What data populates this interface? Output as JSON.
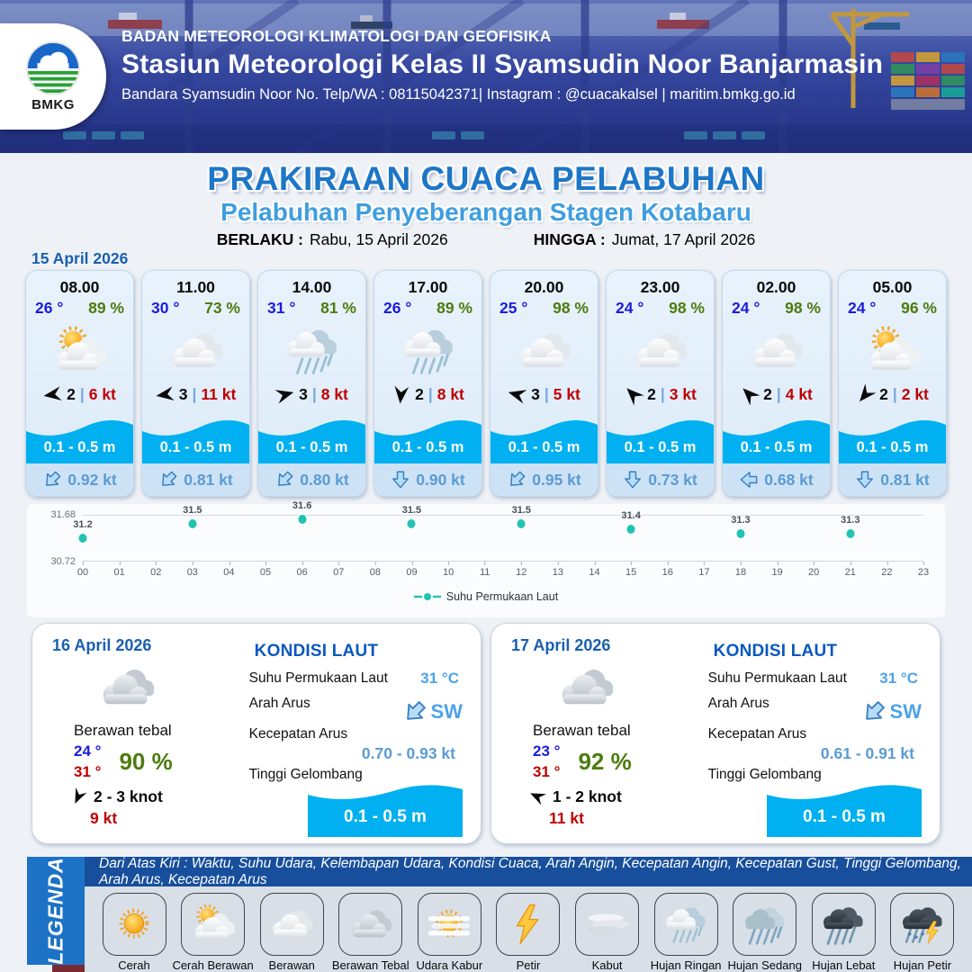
{
  "colors": {
    "title-blue": "#1d76c6",
    "subtitle-blue": "#3f9ede",
    "date-blue": "#1a5fae",
    "temp-blue": "#1c1cdb",
    "humidity-green": "#4d7c0f",
    "gust-red": "#c00000",
    "sep-blue": "#79a8e0",
    "wave-cyan": "#00b0f0",
    "current-blue": "#5b9bd5",
    "chart-teal": "#22c3b2",
    "legend-bar-blue": "#1c72c4",
    "legend-strip-blue": "#174f9c"
  },
  "header": {
    "org": "BADAN METEOROLOGI KLIMATOLOGI DAN GEOFISIKA",
    "station": "Stasiun Meteorologi Kelas II Syamsudin Noor Banjarmasin",
    "contact": "Bandara Syamsudin Noor No. Telp/WA : 08115042371| Instagram : @cuacakalsel | maritim.bmkg.go.id",
    "logo_text": "BMKG"
  },
  "title": {
    "main": "PRAKIRAAN CUACA PELABUHAN",
    "subtitle": "Pelabuhan Penyeberangan Stagen Kotabaru",
    "valid_from_label": "BERLAKU :",
    "valid_from": "Rabu, 15 April 2026",
    "valid_to_label": "HINGGA :",
    "valid_to": "Jumat, 17 April 2026"
  },
  "forecast_date": "15 April 2026",
  "strings": {
    "wind_sep": "|"
  },
  "hourly": [
    {
      "time": "08.00",
      "temp": "26 °",
      "humidity": "89 %",
      "icon": "cerah-berawan",
      "wind_speed": "2",
      "gust": "6 kt",
      "wind_deg": 172,
      "wave": "0.1 - 0.5 m",
      "current": "0.92 kt",
      "current_deg": 45
    },
    {
      "time": "11.00",
      "temp": "30 °",
      "humidity": "73 %",
      "icon": "berawan",
      "wind_speed": "3",
      "gust": "11 kt",
      "wind_deg": 172,
      "wave": "0.1 - 0.5 m",
      "current": "0.81 kt",
      "current_deg": 45
    },
    {
      "time": "14.00",
      "temp": "31 °",
      "humidity": "81 %",
      "icon": "hujan-ringan",
      "wind_speed": "3",
      "gust": "8 kt",
      "wind_deg": 345,
      "wave": "0.1 - 0.5 m",
      "current": "0.80 kt",
      "current_deg": 45
    },
    {
      "time": "17.00",
      "temp": "26 °",
      "humidity": "89 %",
      "icon": "hujan-ringan",
      "wind_speed": "2",
      "gust": "8 kt",
      "wind_deg": 95,
      "wave": "0.1 - 0.5 m",
      "current": "0.90 kt",
      "current_deg": 0
    },
    {
      "time": "20.00",
      "temp": "25 °",
      "humidity": "98 %",
      "icon": "berawan",
      "wind_speed": "3",
      "gust": "5 kt",
      "wind_deg": 195,
      "wave": "0.1 - 0.5 m",
      "current": "0.95 kt",
      "current_deg": 45
    },
    {
      "time": "23.00",
      "temp": "24 °",
      "humidity": "98 %",
      "icon": "berawan",
      "wind_speed": "2",
      "gust": "3 kt",
      "wind_deg": 225,
      "wave": "0.1 - 0.5 m",
      "current": "0.73 kt",
      "current_deg": 0
    },
    {
      "time": "02.00",
      "temp": "24 °",
      "humidity": "98 %",
      "icon": "berawan",
      "wind_speed": "2",
      "gust": "4 kt",
      "wind_deg": 225,
      "wave": "0.1 - 0.5 m",
      "current": "0.68 kt",
      "current_deg": 90
    },
    {
      "time": "05.00",
      "temp": "24 °",
      "humidity": "96 %",
      "icon": "cerah-berawan",
      "wind_speed": "2",
      "gust": "2 kt",
      "wind_deg": 130,
      "wave": "0.1 - 0.5 m",
      "current": "0.81 kt",
      "current_deg": 0
    }
  ],
  "chart_data": {
    "type": "scatter",
    "legend": "Suhu Permukaan Laut",
    "ylim": [
      30.72,
      31.68
    ],
    "y_top_label": "31.68",
    "y_bottom_label": "30.72",
    "x_ticks": [
      "00",
      "01",
      "02",
      "03",
      "04",
      "05",
      "06",
      "07",
      "08",
      "09",
      "10",
      "11",
      "12",
      "13",
      "14",
      "15",
      "16",
      "17",
      "18",
      "19",
      "20",
      "21",
      "22",
      "23"
    ],
    "points": [
      {
        "h": 0,
        "v": 31.2,
        "label": "31.2"
      },
      {
        "h": 3,
        "v": 31.5,
        "label": "31.5"
      },
      {
        "h": 6,
        "v": 31.6,
        "label": "31.6"
      },
      {
        "h": 9,
        "v": 31.5,
        "label": "31.5"
      },
      {
        "h": 12,
        "v": 31.5,
        "label": "31.5"
      },
      {
        "h": 15,
        "v": 31.4,
        "label": "31.4"
      },
      {
        "h": 18,
        "v": 31.3,
        "label": "31.3"
      },
      {
        "h": 21,
        "v": 31.3,
        "label": "31.3"
      }
    ]
  },
  "sea_labels": {
    "title": "KONDISI LAUT",
    "sst": "Suhu Permukaan Laut",
    "dir": "Arah Arus",
    "speed": "Kecepatan Arus",
    "wave": "Tinggi Gelombang"
  },
  "days": [
    {
      "date": "16 April 2026",
      "icon": "berawan-tebal",
      "condition": "Berawan tebal",
      "temp_min": "24 °",
      "temp_max": "31 °",
      "humidity": "90 %",
      "wind_range": "2  - 3 knot",
      "wind_deg": 115,
      "gust": "9 kt",
      "sea": {
        "sst": "31 °C",
        "dir": "SW",
        "dir_deg": 45,
        "speed": "0.70 - 0.93 kt",
        "wave": "0.1 - 0.5 m"
      }
    },
    {
      "date": "17 April 2026",
      "icon": "berawan-tebal",
      "condition": "Berawan tebal",
      "temp_min": "23 °",
      "temp_max": "31 °",
      "humidity": "92 %",
      "wind_range": "1  - 2 knot",
      "wind_deg": 205,
      "gust": "11 kt",
      "sea": {
        "sst": "31 °C",
        "dir": "SW",
        "dir_deg": 45,
        "speed": "0.61 - 0.91 kt",
        "wave": "0.1 - 0.5 m"
      }
    }
  ],
  "legend": {
    "bar": "LEGENDA",
    "note": "Dari Atas Kiri : Waktu, Suhu Udara, Kelembapan Udara, Kondisi Cuaca, Arah Angin, Kecepatan Angin, Kecepatan Gust, Tinggi Gelombang, Arah Arus, Kecepatan Arus",
    "items": [
      {
        "label": "Cerah",
        "icon": "cerah"
      },
      {
        "label": "Cerah Berawan",
        "icon": "cerah-berawan"
      },
      {
        "label": "Berawan",
        "icon": "berawan"
      },
      {
        "label": "Berawan Tebal",
        "icon": "berawan-tebal"
      },
      {
        "label": "Udara Kabur",
        "icon": "udara-kabur"
      },
      {
        "label": "Petir",
        "icon": "petir"
      },
      {
        "label": "Kabut",
        "icon": "kabut"
      },
      {
        "label": "Hujan Ringan",
        "icon": "hujan-ringan"
      },
      {
        "label": "Hujan Sedang",
        "icon": "hujan-sedang"
      },
      {
        "label": "Hujan Lebat",
        "icon": "hujan-lebat"
      },
      {
        "label": "Hujan Petir",
        "icon": "hujan-petir"
      }
    ]
  }
}
